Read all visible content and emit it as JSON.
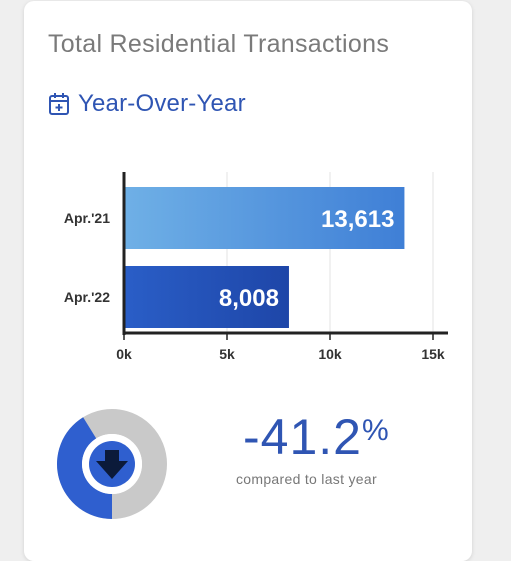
{
  "card": {
    "title": "Total Residential Transactions",
    "subtitle": "Year-Over-Year",
    "subtitle_icon": "calendar-plus-icon"
  },
  "colors": {
    "title": "#7a7a7a",
    "accent": "#2f55b3",
    "bar_apr21_light": "#6fb0e6",
    "bar_apr21_dark": "#3f7fd6",
    "bar_apr22_light": "#2a5ec7",
    "bar_apr22_dark": "#1e46a8",
    "donut_grey": "#c9c9c9",
    "donut_blue": "#2f5fcf"
  },
  "chart_data": {
    "type": "bar",
    "orientation": "horizontal",
    "categories": [
      "Apr.'21",
      "Apr.'22"
    ],
    "values": [
      13613,
      8008
    ],
    "value_labels": [
      "13,613",
      "8,008"
    ],
    "xlim": [
      0,
      15000
    ],
    "x_ticks": [
      0,
      5000,
      10000,
      15000
    ],
    "x_tick_labels": [
      "0k",
      "5k",
      "10k",
      "15k"
    ],
    "grid": true
  },
  "change": {
    "value": "-41.2",
    "unit": "%",
    "caption": "compared to last year",
    "direction_icon": "arrow-down-icon",
    "donut_fraction": 0.412
  }
}
